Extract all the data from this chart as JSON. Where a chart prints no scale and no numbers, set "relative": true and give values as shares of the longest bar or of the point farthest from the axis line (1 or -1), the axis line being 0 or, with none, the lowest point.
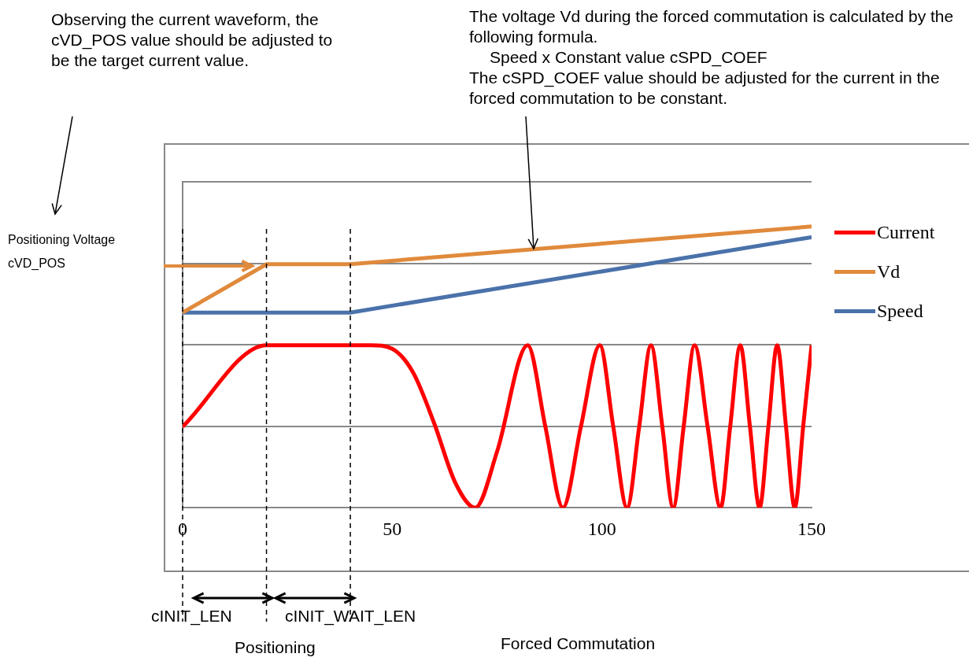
{
  "chart_data": {
    "type": "line",
    "relative": true,
    "xlim": [
      0,
      150
    ],
    "xticks": [
      0,
      50,
      100,
      150
    ],
    "grid": "y",
    "legend": "right",
    "series": [
      {
        "name": "Current",
        "color": "#ff0000",
        "x": [
          0,
          20,
          40,
          45,
          50,
          55,
          60,
          65,
          69.8,
          75,
          82.3,
          86.5,
          90.7,
          95,
          99.5,
          102.7,
          106,
          108.9,
          111.7,
          114.4,
          117,
          119.5,
          122.1,
          125.2,
          128.3,
          130.6,
          133,
          135.3,
          137.6,
          139.7,
          141.8,
          143.9,
          146,
          148,
          150
        ],
        "values": [
          0.288,
          0.578,
          0.578,
          0.578,
          0.565,
          0.48,
          0.3,
          0.09,
          0,
          0.2,
          0.578,
          0.289,
          0,
          0.289,
          0.578,
          0.289,
          0,
          0.289,
          0.578,
          0.289,
          0,
          0.289,
          0.578,
          0.289,
          0,
          0.289,
          0.578,
          0.289,
          0,
          0.289,
          0.578,
          0.289,
          0,
          0.289,
          0.578
        ]
      },
      {
        "name": "Vd",
        "color": "#e08a3c",
        "x": [
          0,
          20,
          40,
          150
        ],
        "values": [
          0.694,
          0.866,
          0.866,
          1
        ]
      },
      {
        "name": "Speed",
        "color": "#4a72aa",
        "x": [
          0,
          40,
          150
        ],
        "values": [
          0.694,
          0.694,
          0.962
        ]
      }
    ],
    "ref_lines": [
      {
        "axis": "x",
        "value": 0,
        "line_style": "dashed",
        "color": "#000000"
      },
      {
        "axis": "x",
        "value": 20,
        "line_style": "dashed",
        "color": "#000000"
      },
      {
        "axis": "x",
        "value": 40,
        "line_style": "dashed",
        "color": "#000000"
      }
    ],
    "annotations": [
      "Observing the current waveform, the cVD_POS value should be adjusted to be the target current value.",
      "The voltage Vd during the forced commutation is calculated by the following formula.",
      "Speed x Constant value cSPD_COEF",
      "The cSPD_COEF value should be adjusted for the current in the forced commutation to be constant.",
      "Positioning Voltage cVD_POS",
      "cINIT_LEN",
      "cINIT_WAIT_LEN",
      "Positioning",
      "Forced Commutation"
    ]
  }
}
